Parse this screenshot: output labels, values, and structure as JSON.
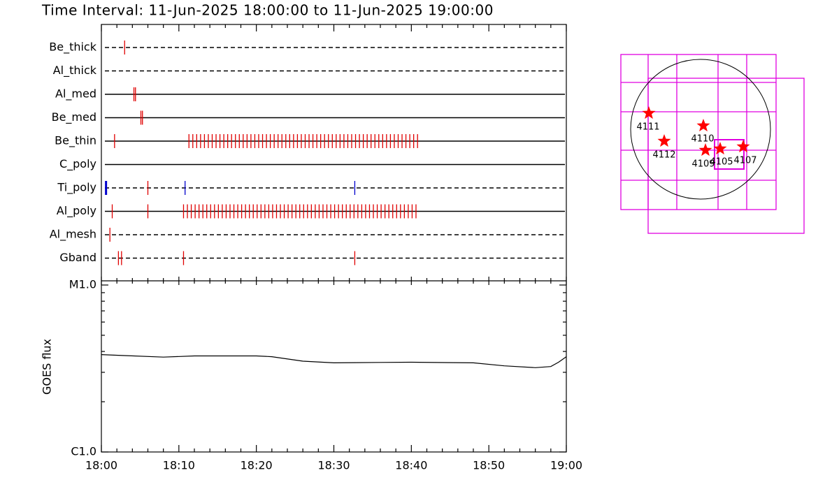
{
  "chart_data": {
    "type": "timeline",
    "title": "Time Interval: 11-Jun-2025 18:00:00 to 11-Jun-2025 19:00:00",
    "xlim": [
      0,
      60
    ],
    "xticks": [
      {
        "value": 0,
        "label": "18:00"
      },
      {
        "value": 10,
        "label": "18:10"
      },
      {
        "value": 20,
        "label": "18:20"
      },
      {
        "value": 30,
        "label": "18:30"
      },
      {
        "value": 40,
        "label": "18:40"
      },
      {
        "value": 50,
        "label": "18:50"
      },
      {
        "value": 60,
        "label": "19:00"
      }
    ],
    "xminor_ticks": [
      2,
      4,
      6,
      8,
      12,
      14,
      16,
      18,
      22,
      24,
      26,
      28,
      32,
      34,
      36,
      38,
      42,
      44,
      46,
      48,
      52,
      54,
      56,
      58
    ],
    "rows": [
      {
        "name": "Be_thick",
        "line": "dashed",
        "series": [
          {
            "color": "#e00000",
            "times": [
              3.0
            ]
          }
        ]
      },
      {
        "name": "Al_thick",
        "line": "dashed",
        "series": []
      },
      {
        "name": "Al_med",
        "line": "solid",
        "series": [
          {
            "color": "#e00000",
            "times": [
              4.2,
              4.4
            ]
          }
        ]
      },
      {
        "name": "Be_med",
        "line": "solid",
        "series": [
          {
            "color": "#e00000",
            "times": [
              5.1,
              5.3
            ]
          }
        ]
      },
      {
        "name": "Be_thin",
        "line": "solid",
        "series": [
          {
            "color": "#e00000",
            "times": [
              1.7,
              11.3,
              11.8,
              12.3,
              12.8,
              13.3,
              13.8,
              14.3,
              14.8,
              15.3,
              15.8,
              16.3,
              16.8,
              17.3,
              17.8,
              18.3,
              18.8,
              19.3,
              19.8,
              20.3,
              20.8,
              21.3,
              21.8,
              22.3,
              22.8,
              23.3,
              23.8,
              24.3,
              24.8,
              25.3,
              25.8,
              26.3,
              26.8,
              27.3,
              27.8,
              28.3,
              28.8,
              29.3,
              29.8,
              30.3,
              30.8,
              31.3,
              31.8,
              32.3,
              32.8,
              33.3,
              33.8,
              34.3,
              34.8,
              35.3,
              35.8,
              36.3,
              36.8,
              37.3,
              37.8,
              38.3,
              38.8,
              39.3,
              39.8,
              40.3,
              40.8
            ]
          }
        ]
      },
      {
        "name": "C_poly",
        "line": "solid",
        "series": []
      },
      {
        "name": "Ti_poly",
        "line": "dashed",
        "series": [
          {
            "color": "#e00000",
            "times": [
              6.0
            ]
          },
          {
            "color": "#0000cc",
            "times": [
              0.6,
              10.8,
              32.7
            ]
          }
        ]
      },
      {
        "name": "Al_poly",
        "line": "solid",
        "series": [
          {
            "color": "#e00000",
            "times": [
              1.4,
              6.0,
              10.6,
              11.1,
              11.6,
              12.1,
              12.6,
              13.1,
              13.6,
              14.1,
              14.6,
              15.1,
              15.6,
              16.1,
              16.6,
              17.1,
              17.6,
              18.1,
              18.6,
              19.1,
              19.6,
              20.1,
              20.6,
              21.1,
              21.6,
              22.1,
              22.6,
              23.1,
              23.6,
              24.1,
              24.6,
              25.1,
              25.6,
              26.1,
              26.6,
              27.1,
              27.6,
              28.1,
              28.6,
              29.1,
              29.6,
              30.1,
              30.6,
              31.1,
              31.6,
              32.1,
              32.6,
              33.1,
              33.6,
              34.1,
              34.6,
              35.1,
              35.6,
              36.1,
              36.6,
              37.1,
              37.6,
              38.1,
              38.6,
              39.1,
              39.6,
              40.1,
              40.6
            ]
          }
        ]
      },
      {
        "name": "Al_mesh",
        "line": "dashed",
        "series": [
          {
            "color": "#e00000",
            "times": [
              1.1
            ]
          }
        ]
      },
      {
        "name": "Gband",
        "line": "dashed",
        "series": [
          {
            "color": "#e00000",
            "times": [
              2.2,
              2.6,
              10.6,
              32.7
            ]
          }
        ]
      }
    ],
    "goes": {
      "ylabel": "GOES flux",
      "ylog": true,
      "ylim": [
        1e-06,
        1e-05
      ],
      "yticks": [
        {
          "value": 1e-06,
          "label": "C1.0"
        },
        {
          "value": 1e-05,
          "label": "M1.0"
        }
      ],
      "yminor_ticks": [
        2e-06,
        3e-06,
        4e-06,
        5e-06,
        6e-06,
        7e-06,
        8e-06,
        9e-06
      ],
      "x": [
        0,
        3,
        8,
        12,
        20,
        22,
        26,
        30,
        36,
        40,
        48,
        52,
        56,
        58,
        59,
        60
      ],
      "values": [
        3.83e-06,
        3.78e-06,
        3.7e-06,
        3.76e-06,
        3.76e-06,
        3.72e-06,
        3.5e-06,
        3.42e-06,
        3.44e-06,
        3.45e-06,
        3.42e-06,
        3.28e-06,
        3.2e-06,
        3.25e-06,
        3.45e-06,
        3.72e-06
      ]
    },
    "map": {
      "regions": [
        {
          "label": "4111"
        },
        {
          "label": "4112"
        },
        {
          "label": "4110"
        },
        {
          "label": "4109"
        },
        {
          "label": "4105"
        },
        {
          "label": "4107"
        }
      ]
    }
  }
}
